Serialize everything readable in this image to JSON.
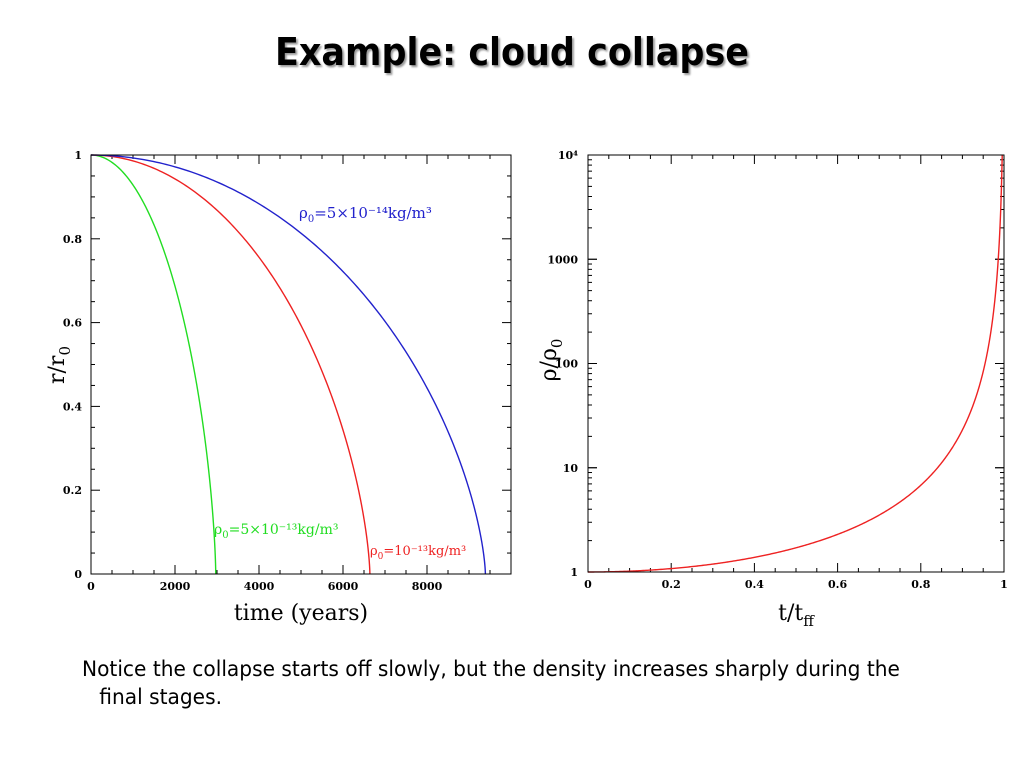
{
  "slide": {
    "title": "Example: cloud collapse",
    "caption": "Notice the collapse starts off slowly, but the density increases sharply during the final stages."
  },
  "chart_data": [
    {
      "type": "line",
      "xlabel": "time (years)",
      "ylabel": "r/r",
      "ylabel_sub": "0",
      "xlim": [
        0,
        10000
      ],
      "ylim": [
        0,
        1
      ],
      "x_ticks": [
        0,
        2000,
        4000,
        6000,
        8000
      ],
      "y_ticks": [
        0,
        0.2,
        0.4,
        0.6,
        0.8,
        1
      ],
      "grid": false,
      "series": [
        {
          "name": "ρ0=5×10⁻¹³kg/m³",
          "label_rho": "ρ",
          "label_sub": "0",
          "label_rest": "=5×10⁻¹³kg/m³",
          "collapse_time": 2970,
          "color": "#22dd22"
        },
        {
          "name": "ρ0=10⁻¹³kg/m³",
          "label_rho": "ρ",
          "label_sub": "0",
          "label_rest": "=10⁻¹³kg/m³",
          "collapse_time": 6640,
          "color": "#ee2222"
        },
        {
          "name": "ρ0=5×10⁻¹⁴kg/m³",
          "label_rho": "ρ",
          "label_sub": "0",
          "label_rest": "=5×10⁻¹⁴kg/m³",
          "collapse_time": 9390,
          "color": "#2222cc"
        }
      ]
    },
    {
      "type": "line",
      "xlabel": "t/t",
      "xlabel_sub": "ff",
      "ylabel": "ρ/ρ",
      "ylabel_sub": "0",
      "yscale": "log",
      "xlim": [
        0,
        1
      ],
      "ylim": [
        1,
        10000
      ],
      "x_ticks": [
        0,
        0.2,
        0.4,
        0.6,
        0.8,
        1
      ],
      "y_ticks": [
        1,
        10,
        100,
        1000,
        10000
      ],
      "y_tick_labels": [
        "1",
        "10",
        "100",
        "1000",
        "10⁴"
      ],
      "grid": false,
      "series": [
        {
          "color": "#ee2222"
        }
      ]
    }
  ]
}
